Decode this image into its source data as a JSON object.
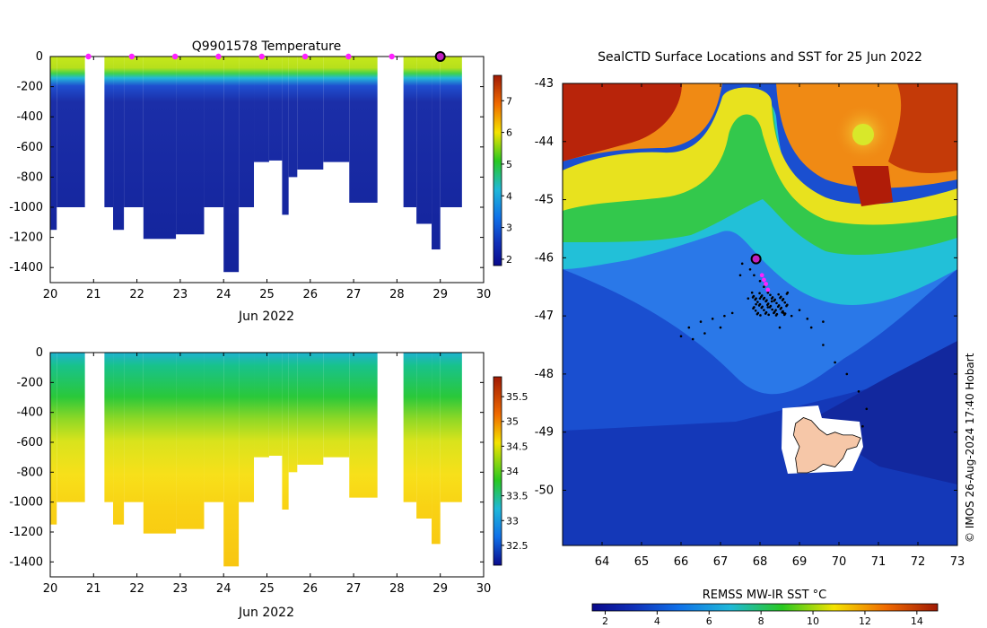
{
  "copyright": "© IMOS 26-Aug-2024 17:40 Hobart",
  "chart_data": [
    {
      "type": "heatmap",
      "title": "Q9901578  Temperature",
      "xlabel": "Jun 2022",
      "xticks": [
        "20",
        "21",
        "22",
        "23",
        "24",
        "25",
        "26",
        "27",
        "28",
        "29",
        "30"
      ],
      "yticks": [
        "0",
        "-200",
        "-400",
        "-600",
        "-800",
        "-1000",
        "-1200",
        "-1400"
      ],
      "xlim": [
        20,
        30
      ],
      "ylim": [
        -1500,
        0
      ],
      "colorbar": {
        "ticks": [
          "7",
          "6",
          "5",
          "4",
          "3",
          "2"
        ],
        "range": [
          1.8,
          7.8
        ]
      },
      "profiles": [
        {
          "x0": 20.0,
          "x1": 20.15,
          "depth": 1150
        },
        {
          "x0": 20.15,
          "x1": 20.8,
          "depth": 1000
        },
        {
          "x0": 21.25,
          "x1": 21.45,
          "depth": 1000
        },
        {
          "x0": 21.45,
          "x1": 21.7,
          "depth": 1150
        },
        {
          "x0": 21.7,
          "x1": 22.15,
          "depth": 1000
        },
        {
          "x0": 22.15,
          "x1": 22.9,
          "depth": 1210
        },
        {
          "x0": 22.9,
          "x1": 23.55,
          "depth": 1180
        },
        {
          "x0": 23.55,
          "x1": 24.0,
          "depth": 1000
        },
        {
          "x0": 24.0,
          "x1": 24.35,
          "depth": 1430
        },
        {
          "x0": 24.35,
          "x1": 24.7,
          "depth": 1000
        },
        {
          "x0": 24.7,
          "x1": 25.05,
          "depth": 700
        },
        {
          "x0": 25.05,
          "x1": 25.35,
          "depth": 690
        },
        {
          "x0": 25.35,
          "x1": 25.5,
          "depth": 1050
        },
        {
          "x0": 25.5,
          "x1": 25.7,
          "depth": 800
        },
        {
          "x0": 25.7,
          "x1": 26.3,
          "depth": 750
        },
        {
          "x0": 26.3,
          "x1": 26.9,
          "depth": 700
        },
        {
          "x0": 26.9,
          "x1": 27.55,
          "depth": 970
        },
        {
          "x0": 28.15,
          "x1": 28.45,
          "depth": 1000
        },
        {
          "x0": 28.45,
          "x1": 28.8,
          "depth": 1110
        },
        {
          "x0": 28.8,
          "x1": 29.0,
          "depth": 1280
        },
        {
          "x0": 29.0,
          "x1": 29.5,
          "depth": 1000
        }
      ],
      "surface_markers": [
        20.85,
        21.85,
        22.85,
        23.85,
        24.85,
        25.85,
        26.85,
        27.85
      ],
      "current_marker": 29.0
    },
    {
      "type": "heatmap",
      "title": "",
      "xlabel": "Jun 2022",
      "xticks": [
        "20",
        "21",
        "22",
        "23",
        "24",
        "25",
        "26",
        "27",
        "28",
        "29",
        "30"
      ],
      "yticks": [
        "0",
        "-200",
        "-400",
        "-600",
        "-800",
        "-1000",
        "-1200",
        "-1400"
      ],
      "xlim": [
        20,
        30
      ],
      "ylim": [
        -1500,
        0
      ],
      "colorbar": {
        "ticks": [
          "35.5",
          "35",
          "34.5",
          "34",
          "33.5",
          "33",
          "32.5"
        ],
        "range": [
          32.1,
          35.9
        ]
      }
    },
    {
      "type": "heatmap",
      "title": "SealCTD Surface Locations and SST for 25 Jun 2022",
      "xticks": [
        "64",
        "65",
        "66",
        "67",
        "68",
        "69",
        "70",
        "71",
        "72",
        "73"
      ],
      "yticks": [
        "-43",
        "-44",
        "-45",
        "-46",
        "-47",
        "-48",
        "-49",
        "-50"
      ],
      "xlim": [
        63.0,
        73.0
      ],
      "ylim": [
        -50.95,
        -43.0
      ],
      "colorbar_label": "REMSS MW-IR SST °C",
      "colorbar_ticks": [
        "2",
        "4",
        "6",
        "8",
        "10",
        "12",
        "14"
      ],
      "colorbar_range": [
        1.5,
        14.8
      ],
      "current_position": {
        "lon": 67.9,
        "lat": -46.02
      },
      "track_points": [
        [
          67.55,
          -46.1
        ],
        [
          67.75,
          -46.2
        ],
        [
          67.85,
          -46.3
        ],
        [
          68.0,
          -46.4
        ],
        [
          68.1,
          -46.5
        ],
        [
          68.2,
          -46.55
        ],
        [
          68.0,
          -46.7
        ],
        [
          67.9,
          -46.8
        ],
        [
          68.2,
          -46.85
        ],
        [
          68.4,
          -46.9
        ],
        [
          68.6,
          -46.95
        ],
        [
          68.3,
          -46.75
        ],
        [
          67.7,
          -46.7
        ],
        [
          67.3,
          -46.95
        ],
        [
          67.1,
          -47.0
        ],
        [
          66.8,
          -47.05
        ],
        [
          66.5,
          -47.1
        ],
        [
          66.2,
          -47.2
        ],
        [
          66.0,
          -47.35
        ],
        [
          66.3,
          -47.4
        ],
        [
          66.6,
          -47.3
        ],
        [
          67.0,
          -47.2
        ],
        [
          68.8,
          -47.0
        ],
        [
          69.2,
          -47.05
        ],
        [
          69.6,
          -47.1
        ],
        [
          69.3,
          -47.2
        ],
        [
          69.6,
          -47.5
        ],
        [
          69.9,
          -47.8
        ],
        [
          70.2,
          -48.0
        ],
        [
          70.5,
          -48.3
        ],
        [
          70.7,
          -48.6
        ],
        [
          70.6,
          -48.9
        ],
        [
          68.5,
          -47.2
        ],
        [
          67.5,
          -46.3
        ],
        [
          68.7,
          -46.6
        ],
        [
          69.0,
          -46.9
        ]
      ],
      "magenta_points": [
        [
          68.05,
          -46.3
        ],
        [
          68.1,
          -46.38
        ],
        [
          68.15,
          -46.45
        ],
        [
          68.2,
          -46.55
        ]
      ],
      "land_outline": [
        [
          68.9,
          -48.85
        ],
        [
          69.1,
          -48.75
        ],
        [
          69.3,
          -48.8
        ],
        [
          69.5,
          -48.95
        ],
        [
          69.7,
          -49.05
        ],
        [
          69.9,
          -49.0
        ],
        [
          70.1,
          -49.05
        ],
        [
          70.35,
          -49.05
        ],
        [
          70.55,
          -49.1
        ],
        [
          70.45,
          -49.25
        ],
        [
          70.2,
          -49.3
        ],
        [
          70.1,
          -49.45
        ],
        [
          69.9,
          -49.6
        ],
        [
          69.6,
          -49.55
        ],
        [
          69.4,
          -49.65
        ],
        [
          69.2,
          -49.7
        ],
        [
          68.95,
          -49.7
        ],
        [
          68.9,
          -49.45
        ],
        [
          69.0,
          -49.25
        ],
        [
          68.85,
          -49.05
        ]
      ]
    }
  ]
}
